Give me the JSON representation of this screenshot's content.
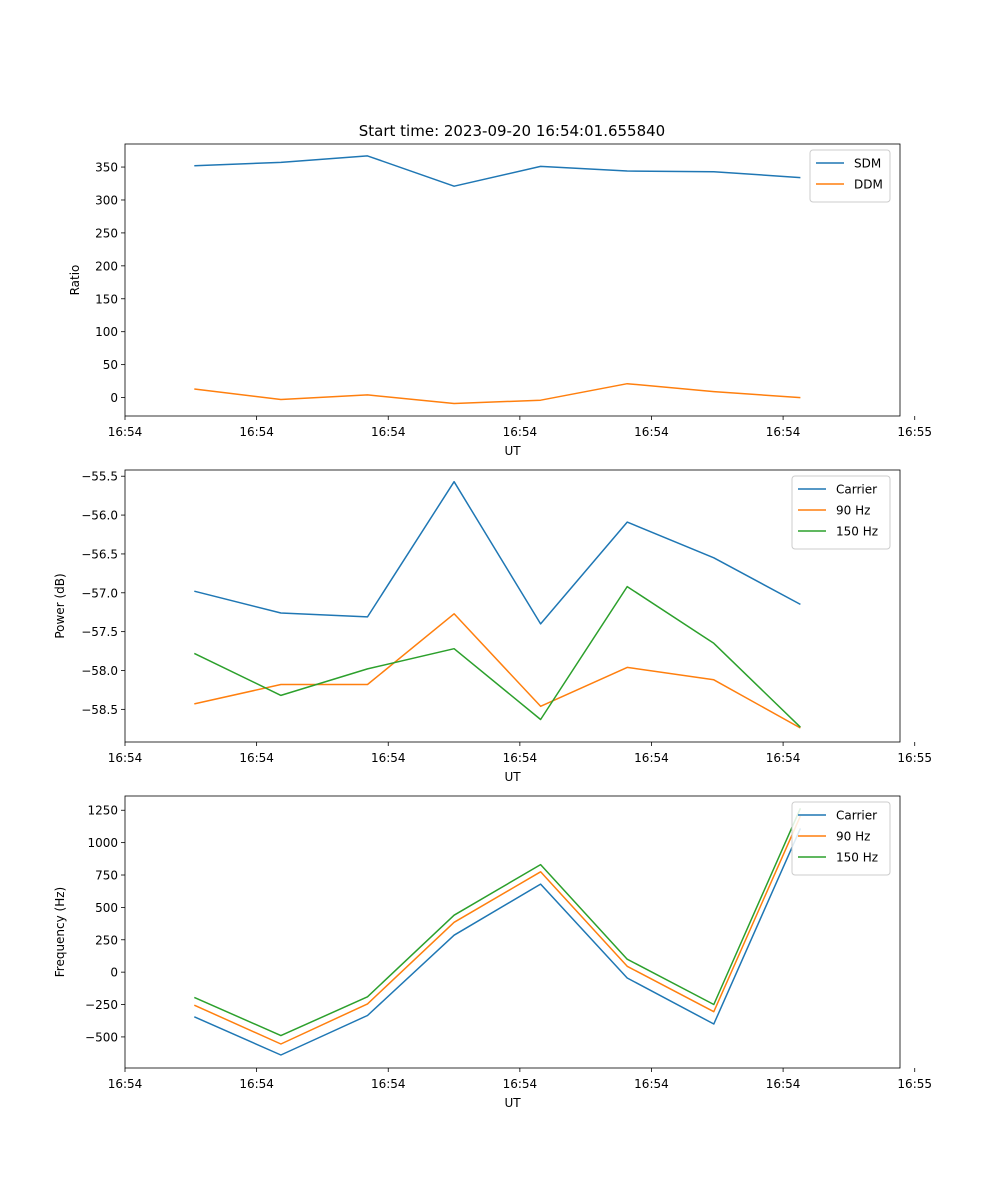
{
  "figure_title": "Start time: 2023-09-20 16:54:01.655840",
  "chart_data": [
    {
      "type": "line",
      "title": "Start time: 2023-09-20 16:54:01.655840",
      "xlabel": "UT",
      "ylabel": "Ratio",
      "x": [
        1,
        2,
        3,
        4,
        5,
        6,
        7,
        8
      ],
      "xlim": [
        0.2,
        9.15
      ],
      "x_ticks": [
        0.2,
        1.72,
        3.24,
        4.76,
        6.28,
        7.8,
        9.32
      ],
      "x_tick_labels": [
        "16:54",
        "16:54",
        "16:54",
        "16:54",
        "16:54",
        "16:54",
        "16:55"
      ],
      "ylim": [
        -28,
        385
      ],
      "y_ticks": [
        0,
        50,
        100,
        150,
        200,
        250,
        300,
        350
      ],
      "y_tick_labels": [
        "0",
        "50",
        "100",
        "150",
        "200",
        "250",
        "300",
        "350"
      ],
      "legend": "top-right",
      "series": [
        {
          "name": "SDM",
          "color": "#1f77b4",
          "values": [
            352,
            357,
            367,
            321,
            351,
            344,
            343,
            334
          ]
        },
        {
          "name": "DDM",
          "color": "#ff7f0e",
          "values": [
            13,
            -3,
            4,
            -9,
            -4,
            21,
            9,
            0
          ]
        }
      ]
    },
    {
      "type": "line",
      "title": "",
      "xlabel": "UT",
      "ylabel": "Power (dB)",
      "x": [
        1,
        2,
        3,
        4,
        5,
        6,
        7,
        8
      ],
      "xlim": [
        0.2,
        9.15
      ],
      "x_ticks": [
        0.2,
        1.72,
        3.24,
        4.76,
        6.28,
        7.8,
        9.32
      ],
      "x_tick_labels": [
        "16:54",
        "16:54",
        "16:54",
        "16:54",
        "16:54",
        "16:54",
        "16:55"
      ],
      "ylim": [
        -58.92,
        -55.42
      ],
      "y_ticks": [
        -55.5,
        -56.0,
        -56.5,
        -57.0,
        -57.5,
        -58.0,
        -58.5
      ],
      "y_tick_labels": [
        "−55.5",
        "−56.0",
        "−56.5",
        "−57.0",
        "−57.5",
        "−58.0",
        "−58.5"
      ],
      "legend": "top-right",
      "series": [
        {
          "name": "Carrier",
          "color": "#1f77b4",
          "values": [
            -56.98,
            -57.26,
            -57.31,
            -55.57,
            -57.4,
            -56.09,
            -56.55,
            -57.15
          ]
        },
        {
          "name": "90 Hz",
          "color": "#ff7f0e",
          "values": [
            -58.43,
            -58.18,
            -58.18,
            -57.27,
            -58.46,
            -57.96,
            -58.12,
            -58.74
          ]
        },
        {
          "name": "150 Hz",
          "color": "#2ca02c",
          "values": [
            -57.78,
            -58.32,
            -57.98,
            -57.72,
            -58.63,
            -56.92,
            -57.65,
            -58.73
          ]
        }
      ]
    },
    {
      "type": "line",
      "title": "",
      "xlabel": "UT",
      "ylabel": "Frequency (Hz)",
      "x": [
        1,
        2,
        3,
        4,
        5,
        6,
        7,
        8
      ],
      "xlim": [
        0.2,
        9.15
      ],
      "x_ticks": [
        0.2,
        1.72,
        3.24,
        4.76,
        6.28,
        7.8,
        9.32
      ],
      "x_tick_labels": [
        "16:54",
        "16:54",
        "16:54",
        "16:54",
        "16:54",
        "16:54",
        "16:55"
      ],
      "ylim": [
        -740,
        1360
      ],
      "y_ticks": [
        -500,
        -250,
        0,
        250,
        500,
        750,
        1000,
        1250
      ],
      "y_tick_labels": [
        "−500",
        "−250",
        "0",
        "250",
        "500",
        "750",
        "1000",
        "1250"
      ],
      "legend": "top-right",
      "series": [
        {
          "name": "Carrier",
          "color": "#1f77b4",
          "values": [
            -345,
            -640,
            -335,
            285,
            680,
            -45,
            -400,
            1110
          ]
        },
        {
          "name": "90 Hz",
          "color": "#ff7f0e",
          "values": [
            -255,
            -555,
            -245,
            385,
            775,
            45,
            -305,
            1205
          ]
        },
        {
          "name": "150 Hz",
          "color": "#2ca02c",
          "values": [
            -195,
            -490,
            -190,
            440,
            830,
            100,
            -250,
            1265
          ]
        }
      ]
    }
  ]
}
